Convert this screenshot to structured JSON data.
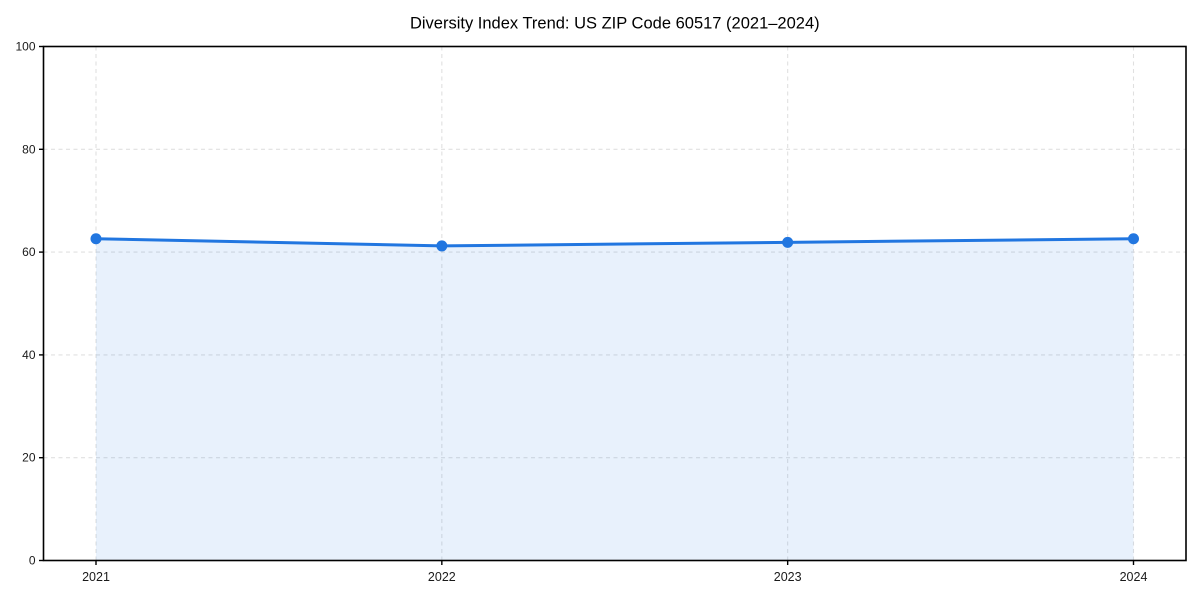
{
  "chart_data": {
    "type": "area",
    "title": "Diversity Index Trend: US ZIP Code 60517 (2021–2024)",
    "categories": [
      "2021",
      "2022",
      "2023",
      "2024"
    ],
    "x": [
      2021,
      2022,
      2023,
      2024
    ],
    "series": [
      {
        "name": "Diversity Index",
        "values": [
          62.6,
          61.2,
          61.9,
          62.6
        ]
      }
    ],
    "xlabel": "",
    "ylabel": "",
    "ylim": [
      0,
      100
    ],
    "yticks": [
      0,
      20,
      40,
      60,
      80,
      100
    ],
    "grid": "dashed both directions",
    "legend_position": "none",
    "marker": "circle",
    "colors": {
      "line": "#2176e0",
      "marker": "#2176e0",
      "fill_rgba": "rgba(33, 118, 224, 0.10)",
      "grid": "#e0e0e0",
      "spine": "#000000",
      "tick_text": "#1a1a1a",
      "background": "#ffffff"
    }
  }
}
